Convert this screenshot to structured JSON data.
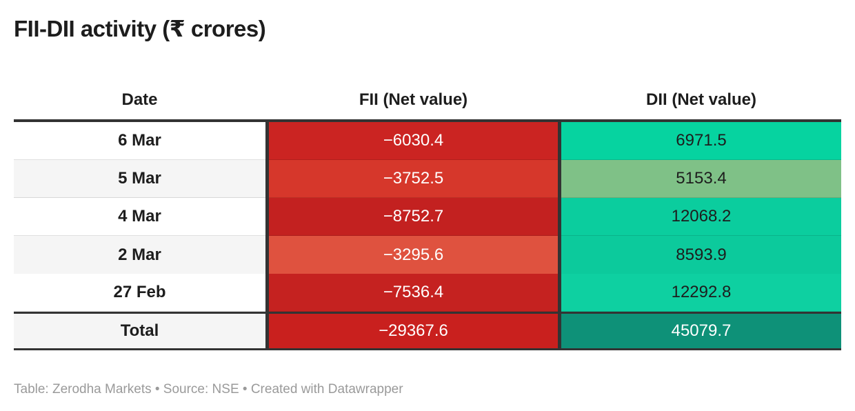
{
  "title": "FII-DII activity (₹ crores)",
  "columns": {
    "date": "Date",
    "fii": "FII (Net value)",
    "dii": "DII (Net value)"
  },
  "rows": [
    {
      "date": "6 Mar",
      "fii": "−6030.4",
      "dii": "6971.5",
      "date_bg": "#ffffff",
      "fii_bg": "#cb2422",
      "fii_color": "#ffffff",
      "dii_bg": "#06d3a0",
      "dii_color": "#1d1d1d"
    },
    {
      "date": "5 Mar",
      "fii": "−3752.5",
      "dii": "5153.4",
      "date_bg": "#f5f5f5",
      "fii_bg": "#d6372b",
      "fii_color": "#ffffff",
      "dii_bg": "#7fc187",
      "dii_color": "#1d1d1d"
    },
    {
      "date": "4 Mar",
      "fii": "−8752.7",
      "dii": "12068.2",
      "date_bg": "#ffffff",
      "fii_bg": "#c32120",
      "fii_color": "#ffffff",
      "dii_bg": "#0bcd9e",
      "dii_color": "#1d1d1d"
    },
    {
      "date": "2 Mar",
      "fii": "−3295.6",
      "dii": "8593.9",
      "date_bg": "#f5f5f5",
      "fii_bg": "#df523f",
      "fii_color": "#ffffff",
      "dii_bg": "#0cca9c",
      "dii_color": "#1d1d1d"
    },
    {
      "date": "27 Feb",
      "fii": "−7536.4",
      "dii": "12292.8",
      "date_bg": "#ffffff",
      "fii_bg": "#c52220",
      "fii_color": "#ffffff",
      "dii_bg": "#0ed0a1",
      "dii_color": "#1d1d1d"
    }
  ],
  "total": {
    "date": "Total",
    "fii": "−29367.6",
    "dii": "45079.7",
    "date_bg": "#f5f5f5",
    "fii_bg": "#c9201e",
    "fii_color": "#ffffff",
    "dii_bg": "#0e9178",
    "dii_color": "#ffffff"
  },
  "footer": "Table: Zerodha Markets • Source: NSE • Created with Datawrapper",
  "colors": {
    "separator_dark": "#333333",
    "title_text": "#1d1d1d",
    "footer_text": "#9a9a9a"
  },
  "chart_data": {
    "type": "table",
    "title": "FII-DII activity (₹ crores)",
    "columns": [
      "Date",
      "FII (Net value)",
      "DII (Net value)"
    ],
    "rows": [
      [
        "6 Mar",
        -6030.4,
        6971.5
      ],
      [
        "5 Mar",
        -3752.5,
        5153.4
      ],
      [
        "4 Mar",
        -8752.7,
        12068.2
      ],
      [
        "2 Mar",
        -3295.6,
        8593.9
      ],
      [
        "27 Feb",
        -7536.4,
        12292.8
      ],
      [
        "Total",
        -29367.6,
        45079.7
      ]
    ]
  }
}
